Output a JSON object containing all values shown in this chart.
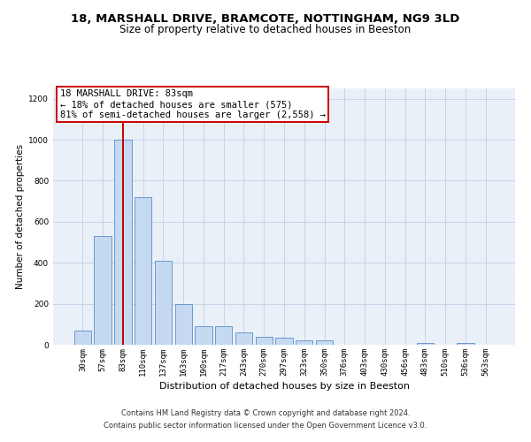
{
  "title_line1": "18, MARSHALL DRIVE, BRAMCOTE, NOTTINGHAM, NG9 3LD",
  "title_line2": "Size of property relative to detached houses in Beeston",
  "xlabel": "Distribution of detached houses by size in Beeston",
  "ylabel": "Number of detached properties",
  "bar_labels": [
    "30sqm",
    "57sqm",
    "83sqm",
    "110sqm",
    "137sqm",
    "163sqm",
    "190sqm",
    "217sqm",
    "243sqm",
    "270sqm",
    "297sqm",
    "323sqm",
    "350sqm",
    "376sqm",
    "403sqm",
    "430sqm",
    "456sqm",
    "483sqm",
    "510sqm",
    "536sqm",
    "563sqm"
  ],
  "bar_values": [
    70,
    530,
    1000,
    720,
    410,
    200,
    90,
    90,
    60,
    40,
    35,
    20,
    20,
    0,
    0,
    0,
    0,
    10,
    0,
    10,
    0
  ],
  "bar_color": "#c5d9f1",
  "bar_edge_color": "#5b8cc8",
  "highlight_bar_index": 2,
  "highlight_line_color": "#cc0000",
  "ylim": [
    0,
    1250
  ],
  "yticks": [
    0,
    200,
    400,
    600,
    800,
    1000,
    1200
  ],
  "annotation_text": "18 MARSHALL DRIVE: 83sqm\n← 18% of detached houses are smaller (575)\n81% of semi-detached houses are larger (2,558) →",
  "footnote_line1": "Contains HM Land Registry data © Crown copyright and database right 2024.",
  "footnote_line2": "Contains public sector information licensed under the Open Government Licence v3.0.",
  "background_color": "#ffffff",
  "plot_bg_color": "#eaf0f8",
  "grid_color": "#c8d4e8",
  "title1_fontsize": 9.5,
  "title2_fontsize": 8.5,
  "xlabel_fontsize": 8,
  "ylabel_fontsize": 7.5,
  "tick_fontsize": 6.5,
  "annotation_fontsize": 7.5,
  "footnote_fontsize": 6
}
